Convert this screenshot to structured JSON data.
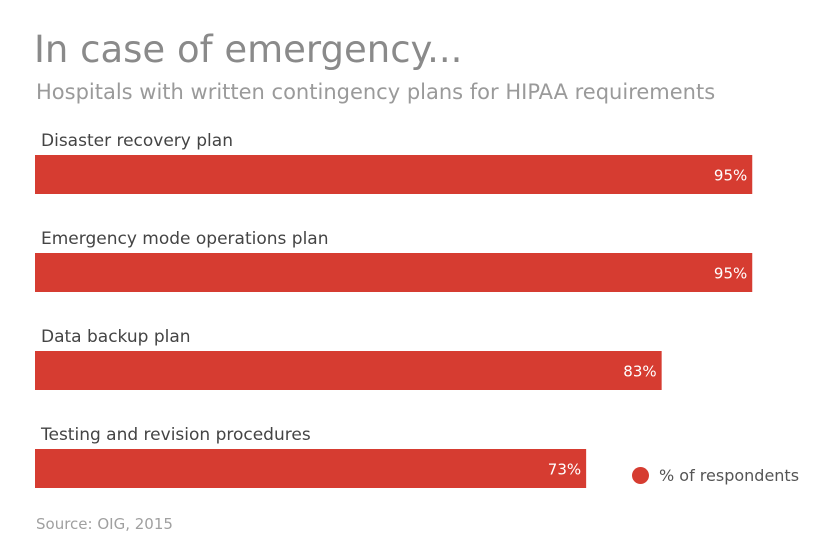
{
  "chart_data": {
    "type": "bar",
    "orientation": "horizontal",
    "title": "In case of emergency...",
    "subtitle": "Hospitals with written contingency plans for HIPAA requirements",
    "categories": [
      "Disaster recovery plan",
      "Emergency mode operations plan",
      "Data backup plan",
      "Testing and revision procedures"
    ],
    "series": [
      {
        "name": "% of respondents",
        "values": [
          95,
          95,
          83,
          73
        ],
        "data_labels": [
          "95%",
          "95%",
          "83%",
          "73%"
        ],
        "color": "#d63c31"
      }
    ],
    "xlim": [
      0,
      100
    ],
    "grid": false,
    "legend_position": "bottom-right",
    "source": "Source: OIG, 2015"
  }
}
